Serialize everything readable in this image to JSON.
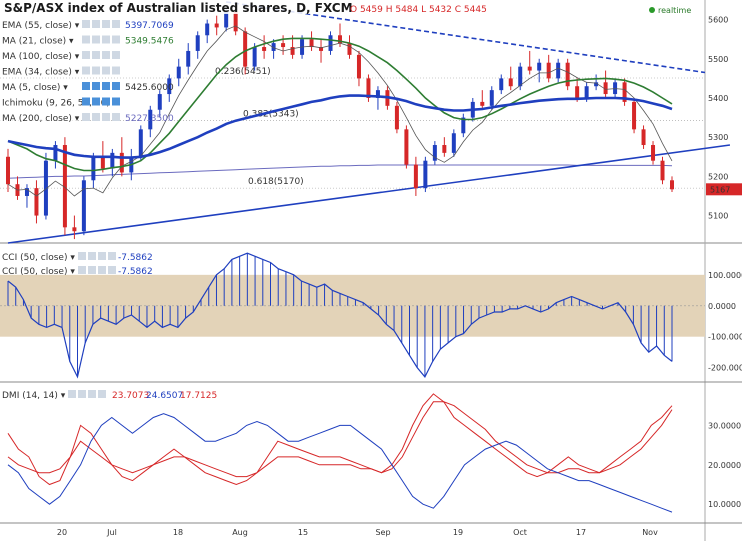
{
  "header": {
    "title": "S&P/ASX index of Australian listed shares, D, FXCM",
    "ohlc": {
      "o_label": "O",
      "o": "5459",
      "h_label": "H",
      "h": "5484",
      "l_label": "L",
      "l": "5432",
      "c_label": "C",
      "c": "5445"
    },
    "realtime": "realtime"
  },
  "indicators": [
    {
      "name": "EMA (55, close)",
      "value": "5397.7069",
      "color": "#1f3fbf"
    },
    {
      "name": "MA (21, close)",
      "value": "5349.5476",
      "color": "#2e7d32"
    },
    {
      "name": "MA (100, close)",
      "value": "",
      "color": "#1f3fbf"
    },
    {
      "name": "EMA (34, close)",
      "value": "",
      "color": "#1f3fbf"
    },
    {
      "name": "MA (5, close)",
      "value": "5425.6000",
      "color": "#333333"
    },
    {
      "name": "Ichimoku (9, 26, 52, 26)",
      "value": "",
      "color": "#1f3fbf"
    },
    {
      "name": "MA (200, close)",
      "value": "5227.3500",
      "color": "#6b6bbf"
    }
  ],
  "fib_labels": [
    "0.236(5451)",
    "0.382(5343)",
    "0.618(5170)"
  ],
  "price_badge": "5167",
  "colors": {
    "up": "#1f3fbf",
    "down": "#d62728",
    "ema": "#1f3fbf",
    "ma21": "#2e7d32",
    "band": "#e3d3b8"
  },
  "chart_data": [
    {
      "type": "candlestick",
      "title": "S&P/ASX index of Australian listed shares, D, FXCM",
      "x_ticks": [
        "20",
        "Jul",
        "18",
        "Aug",
        "15",
        "Sep",
        "19",
        "Oct",
        "17",
        "Nov"
      ],
      "y_ticks": [
        "5600",
        "5500",
        "5400",
        "5300",
        "5200",
        "5100"
      ],
      "ylim": [
        5030,
        5650
      ],
      "candles": [
        {
          "o": 5250,
          "h": 5270,
          "l": 5160,
          "c": 5180
        },
        {
          "o": 5180,
          "h": 5200,
          "l": 5140,
          "c": 5150
        },
        {
          "o": 5150,
          "h": 5180,
          "l": 5120,
          "c": 5170
        },
        {
          "o": 5170,
          "h": 5190,
          "l": 5080,
          "c": 5100
        },
        {
          "o": 5100,
          "h": 5260,
          "l": 5090,
          "c": 5240
        },
        {
          "o": 5240,
          "h": 5290,
          "l": 5220,
          "c": 5280
        },
        {
          "o": 5280,
          "h": 5300,
          "l": 5050,
          "c": 5070
        },
        {
          "o": 5070,
          "h": 5100,
          "l": 5040,
          "c": 5060
        },
        {
          "o": 5060,
          "h": 5200,
          "l": 5050,
          "c": 5190
        },
        {
          "o": 5190,
          "h": 5260,
          "l": 5170,
          "c": 5250
        },
        {
          "o": 5250,
          "h": 5290,
          "l": 5210,
          "c": 5220
        },
        {
          "o": 5220,
          "h": 5270,
          "l": 5200,
          "c": 5260
        },
        {
          "o": 5260,
          "h": 5300,
          "l": 5200,
          "c": 5210
        },
        {
          "o": 5210,
          "h": 5270,
          "l": 5190,
          "c": 5250
        },
        {
          "o": 5250,
          "h": 5330,
          "l": 5240,
          "c": 5320
        },
        {
          "o": 5320,
          "h": 5380,
          "l": 5300,
          "c": 5370
        },
        {
          "o": 5370,
          "h": 5420,
          "l": 5350,
          "c": 5410
        },
        {
          "o": 5410,
          "h": 5460,
          "l": 5390,
          "c": 5450
        },
        {
          "o": 5450,
          "h": 5500,
          "l": 5430,
          "c": 5480
        },
        {
          "o": 5480,
          "h": 5540,
          "l": 5460,
          "c": 5520
        },
        {
          "o": 5520,
          "h": 5570,
          "l": 5500,
          "c": 5560
        },
        {
          "o": 5560,
          "h": 5600,
          "l": 5540,
          "c": 5590
        },
        {
          "o": 5590,
          "h": 5610,
          "l": 5560,
          "c": 5580
        },
        {
          "o": 5580,
          "h": 5630,
          "l": 5570,
          "c": 5620
        },
        {
          "o": 5620,
          "h": 5640,
          "l": 5560,
          "c": 5570
        },
        {
          "o": 5570,
          "h": 5580,
          "l": 5460,
          "c": 5480
        },
        {
          "o": 5480,
          "h": 5540,
          "l": 5470,
          "c": 5530
        },
        {
          "o": 5530,
          "h": 5560,
          "l": 5500,
          "c": 5520
        },
        {
          "o": 5520,
          "h": 5550,
          "l": 5500,
          "c": 5540
        },
        {
          "o": 5540,
          "h": 5560,
          "l": 5510,
          "c": 5530
        },
        {
          "o": 5530,
          "h": 5560,
          "l": 5500,
          "c": 5510
        },
        {
          "o": 5510,
          "h": 5560,
          "l": 5500,
          "c": 5550
        },
        {
          "o": 5550,
          "h": 5570,
          "l": 5520,
          "c": 5530
        },
        {
          "o": 5530,
          "h": 5550,
          "l": 5490,
          "c": 5520
        },
        {
          "o": 5520,
          "h": 5570,
          "l": 5510,
          "c": 5560
        },
        {
          "o": 5560,
          "h": 5590,
          "l": 5530,
          "c": 5540
        },
        {
          "o": 5540,
          "h": 5560,
          "l": 5500,
          "c": 5510
        },
        {
          "o": 5510,
          "h": 5520,
          "l": 5430,
          "c": 5450
        },
        {
          "o": 5450,
          "h": 5460,
          "l": 5390,
          "c": 5400
        },
        {
          "o": 5400,
          "h": 5430,
          "l": 5370,
          "c": 5420
        },
        {
          "o": 5420,
          "h": 5430,
          "l": 5370,
          "c": 5380
        },
        {
          "o": 5380,
          "h": 5390,
          "l": 5310,
          "c": 5320
        },
        {
          "o": 5320,
          "h": 5330,
          "l": 5220,
          "c": 5230
        },
        {
          "o": 5230,
          "h": 5250,
          "l": 5150,
          "c": 5170
        },
        {
          "o": 5170,
          "h": 5250,
          "l": 5160,
          "c": 5240
        },
        {
          "o": 5240,
          "h": 5290,
          "l": 5230,
          "c": 5280
        },
        {
          "o": 5280,
          "h": 5300,
          "l": 5250,
          "c": 5260
        },
        {
          "o": 5260,
          "h": 5320,
          "l": 5250,
          "c": 5310
        },
        {
          "o": 5310,
          "h": 5360,
          "l": 5300,
          "c": 5350
        },
        {
          "o": 5350,
          "h": 5400,
          "l": 5340,
          "c": 5390
        },
        {
          "o": 5390,
          "h": 5420,
          "l": 5370,
          "c": 5380
        },
        {
          "o": 5380,
          "h": 5430,
          "l": 5370,
          "c": 5420
        },
        {
          "o": 5420,
          "h": 5460,
          "l": 5410,
          "c": 5450
        },
        {
          "o": 5450,
          "h": 5480,
          "l": 5420,
          "c": 5430
        },
        {
          "o": 5430,
          "h": 5490,
          "l": 5420,
          "c": 5480
        },
        {
          "o": 5480,
          "h": 5520,
          "l": 5460,
          "c": 5470
        },
        {
          "o": 5470,
          "h": 5500,
          "l": 5440,
          "c": 5490
        },
        {
          "o": 5490,
          "h": 5510,
          "l": 5440,
          "c": 5450
        },
        {
          "o": 5450,
          "h": 5500,
          "l": 5440,
          "c": 5490
        },
        {
          "o": 5490,
          "h": 5500,
          "l": 5420,
          "c": 5430
        },
        {
          "o": 5430,
          "h": 5450,
          "l": 5390,
          "c": 5400
        },
        {
          "o": 5400,
          "h": 5440,
          "l": 5390,
          "c": 5430
        },
        {
          "o": 5430,
          "h": 5460,
          "l": 5420,
          "c": 5440
        },
        {
          "o": 5440,
          "h": 5470,
          "l": 5400,
          "c": 5410
        },
        {
          "o": 5410,
          "h": 5450,
          "l": 5400,
          "c": 5440
        },
        {
          "o": 5440,
          "h": 5450,
          "l": 5380,
          "c": 5390
        },
        {
          "o": 5390,
          "h": 5400,
          "l": 5310,
          "c": 5320
        },
        {
          "o": 5320,
          "h": 5330,
          "l": 5270,
          "c": 5280
        },
        {
          "o": 5280,
          "h": 5290,
          "l": 5230,
          "c": 5240
        },
        {
          "o": 5240,
          "h": 5250,
          "l": 5180,
          "c": 5190
        },
        {
          "o": 5190,
          "h": 5200,
          "l": 5160,
          "c": 5167
        }
      ],
      "ema55": [
        5290,
        5285,
        5280,
        5275,
        5272,
        5270,
        5262,
        5255,
        5252,
        5250,
        5250,
        5250,
        5248,
        5248,
        5250,
        5255,
        5262,
        5270,
        5280,
        5290,
        5300,
        5312,
        5322,
        5334,
        5342,
        5348,
        5354,
        5360,
        5366,
        5372,
        5378,
        5384,
        5390,
        5394,
        5400,
        5404,
        5406,
        5406,
        5405,
        5404,
        5402,
        5398,
        5392,
        5384,
        5378,
        5374,
        5370,
        5368,
        5368,
        5370,
        5372,
        5376,
        5380,
        5383,
        5387,
        5390,
        5393,
        5395,
        5397,
        5398,
        5398,
        5399,
        5400,
        5400,
        5400,
        5399,
        5396,
        5392,
        5386,
        5380,
        5372
      ],
      "ma21": [
        5290,
        5280,
        5270,
        5255,
        5245,
        5240,
        5230,
        5220,
        5215,
        5215,
        5218,
        5222,
        5225,
        5230,
        5240,
        5260,
        5285,
        5310,
        5340,
        5370,
        5400,
        5430,
        5460,
        5485,
        5505,
        5520,
        5530,
        5538,
        5545,
        5550,
        5552,
        5552,
        5552,
        5550,
        5548,
        5545,
        5540,
        5532,
        5520,
        5505,
        5490,
        5470,
        5448,
        5425,
        5400,
        5380,
        5362,
        5350,
        5345,
        5345,
        5350,
        5360,
        5372,
        5385,
        5398,
        5410,
        5420,
        5430,
        5438,
        5443,
        5446,
        5448,
        5449,
        5450,
        5448,
        5445,
        5438,
        5428,
        5415,
        5400,
        5385
      ],
      "ma200": [
        5195,
        5196,
        5197,
        5198,
        5199,
        5200,
        5200,
        5201,
        5201,
        5202,
        5203,
        5204,
        5205,
        5206,
        5207,
        5208,
        5209,
        5210,
        5211,
        5212,
        5213,
        5214,
        5215,
        5216,
        5217,
        5218,
        5219,
        5220,
        5221,
        5222,
        5223,
        5224,
        5225,
        5226,
        5226,
        5227,
        5227,
        5228,
        5228,
        5229,
        5229,
        5229,
        5229,
        5229,
        5229,
        5229,
        5229,
        5229,
        5229,
        5229,
        5229,
        5229,
        5229,
        5229,
        5229,
        5229,
        5229,
        5229,
        5229,
        5229,
        5228,
        5228,
        5228,
        5228,
        5228,
        5228,
        5228,
        5228,
        5228,
        5228,
        5227
      ],
      "fib_levels": [
        5451,
        5343,
        5170
      ],
      "trend_up": [
        [
          0,
          5030
        ],
        [
          74,
          5280
        ]
      ],
      "trend_down": [
        [
          23,
          5645
        ],
        [
          74,
          5465
        ]
      ]
    },
    {
      "type": "bar",
      "title": "CCI (50, close)",
      "value_label": "-7.5862",
      "y_ticks": [
        "100.0000",
        "0.0000",
        "-100.0000",
        "-200.0000"
      ],
      "ylim": [
        -240,
        190
      ],
      "band": [
        -100,
        100
      ],
      "values": [
        80,
        60,
        20,
        -40,
        -60,
        -70,
        -60,
        -70,
        -180,
        -230,
        -120,
        -60,
        -40,
        -50,
        -60,
        -40,
        -30,
        -50,
        -70,
        -50,
        -70,
        -60,
        -70,
        -40,
        -20,
        20,
        60,
        100,
        120,
        150,
        160,
        170,
        160,
        150,
        140,
        120,
        110,
        100,
        80,
        70,
        60,
        70,
        50,
        40,
        30,
        20,
        10,
        -10,
        -30,
        -60,
        -80,
        -120,
        -160,
        -200,
        -230,
        -180,
        -140,
        -120,
        -100,
        -90,
        -60,
        -40,
        -30,
        -20,
        -20,
        -10,
        -10,
        0,
        -10,
        -20,
        -10,
        10,
        20,
        30,
        20,
        10,
        0,
        -10,
        0,
        10,
        -20,
        -60,
        -120,
        -150,
        -130,
        -160,
        -180
      ]
    },
    {
      "type": "line",
      "title": "DMI (14, 14)",
      "values_label": [
        "23.7073",
        "24.6507",
        "17.7125"
      ],
      "y_ticks": [
        "30.0000",
        "20.0000",
        "10.0000"
      ],
      "ylim": [
        6,
        40
      ],
      "series": [
        {
          "color": "#d62728",
          "values": [
            28,
            24,
            22,
            17,
            15,
            16,
            22,
            30,
            28,
            24,
            20,
            17,
            16,
            18,
            20,
            22,
            24,
            22,
            20,
            18,
            17,
            16,
            15,
            16,
            18,
            22,
            26,
            25,
            24,
            23,
            22,
            22,
            22,
            21,
            20,
            19,
            18,
            20,
            24,
            30,
            35,
            38,
            36,
            32,
            30,
            28,
            26,
            24,
            22,
            20,
            18,
            17,
            18,
            20,
            22,
            20,
            19,
            18,
            20,
            22,
            24,
            26,
            30,
            32,
            35
          ]
        },
        {
          "color": "#d62728",
          "values": [
            22,
            20,
            19,
            18,
            18,
            19,
            22,
            26,
            24,
            22,
            20,
            19,
            18,
            19,
            20,
            21,
            22,
            22,
            21,
            20,
            19,
            18,
            17,
            17,
            18,
            20,
            22,
            22,
            22,
            21,
            20,
            20,
            20,
            20,
            19,
            19,
            18,
            19,
            22,
            27,
            32,
            36,
            36,
            35,
            33,
            31,
            29,
            26,
            24,
            22,
            20,
            19,
            18,
            18,
            19,
            19,
            18,
            18,
            19,
            20,
            22,
            24,
            27,
            30,
            34
          ]
        },
        {
          "color": "#1f3fbf",
          "values": [
            20,
            18,
            14,
            12,
            10,
            12,
            16,
            20,
            26,
            30,
            32,
            30,
            28,
            30,
            32,
            33,
            32,
            30,
            28,
            26,
            26,
            27,
            28,
            30,
            31,
            30,
            28,
            26,
            26,
            27,
            28,
            29,
            30,
            30,
            28,
            26,
            24,
            20,
            16,
            12,
            10,
            9,
            12,
            16,
            20,
            22,
            24,
            25,
            26,
            25,
            23,
            21,
            19,
            18,
            17,
            16,
            16,
            15,
            14,
            13,
            12,
            11,
            10,
            9,
            8
          ]
        }
      ]
    }
  ],
  "x_axis": [
    "20",
    "Jul",
    "18",
    "Aug",
    "15",
    "Sep",
    "19",
    "Oct",
    "17",
    "Nov"
  ]
}
